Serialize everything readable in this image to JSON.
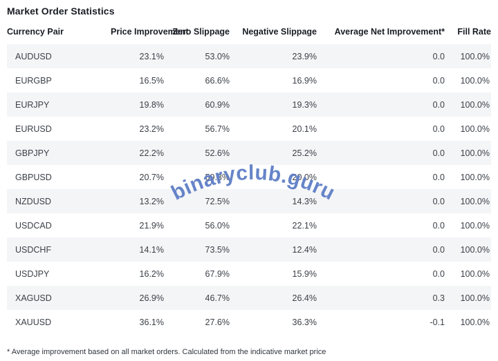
{
  "page": {
    "title": "Market Order Statistics",
    "watermark": "binaryclub.guru",
    "footnote": "* Average improvement based on all market orders. Calculated from the indicative market price"
  },
  "colors": {
    "stripe": "#f4f5f7",
    "header_text": "#191d24",
    "cell_text": "#3b4047",
    "watermark": "#5e7ec6"
  },
  "chart_data": {
    "type": "table",
    "title": "Market Order Statistics",
    "columns": [
      "Currency Pair",
      "Price Improvement",
      "Zero Slippage",
      "Negative Slippage",
      "Average Net Improvement*",
      "Fill Rate"
    ],
    "rows": [
      [
        "AUDUSD",
        "23.1%",
        "53.0%",
        "23.9%",
        "0.0",
        "100.0%"
      ],
      [
        "EURGBP",
        "16.5%",
        "66.6%",
        "16.9%",
        "0.0",
        "100.0%"
      ],
      [
        "EURJPY",
        "19.8%",
        "60.9%",
        "19.3%",
        "0.0",
        "100.0%"
      ],
      [
        "EURUSD",
        "23.2%",
        "56.7%",
        "20.1%",
        "0.0",
        "100.0%"
      ],
      [
        "GBPJPY",
        "22.2%",
        "52.6%",
        "25.2%",
        "0.0",
        "100.0%"
      ],
      [
        "GBPUSD",
        "20.7%",
        "59.3%",
        "20.0%",
        "0.0",
        "100.0%"
      ],
      [
        "NZDUSD",
        "13.2%",
        "72.5%",
        "14.3%",
        "0.0",
        "100.0%"
      ],
      [
        "USDCAD",
        "21.9%",
        "56.0%",
        "22.1%",
        "0.0",
        "100.0%"
      ],
      [
        "USDCHF",
        "14.1%",
        "73.5%",
        "12.4%",
        "0.0",
        "100.0%"
      ],
      [
        "USDJPY",
        "16.2%",
        "67.9%",
        "15.9%",
        "0.0",
        "100.0%"
      ],
      [
        "XAGUSD",
        "26.9%",
        "46.7%",
        "26.4%",
        "0.3",
        "100.0%"
      ],
      [
        "XAUUSD",
        "36.1%",
        "27.6%",
        "36.3%",
        "-0.1",
        "100.0%"
      ]
    ]
  }
}
